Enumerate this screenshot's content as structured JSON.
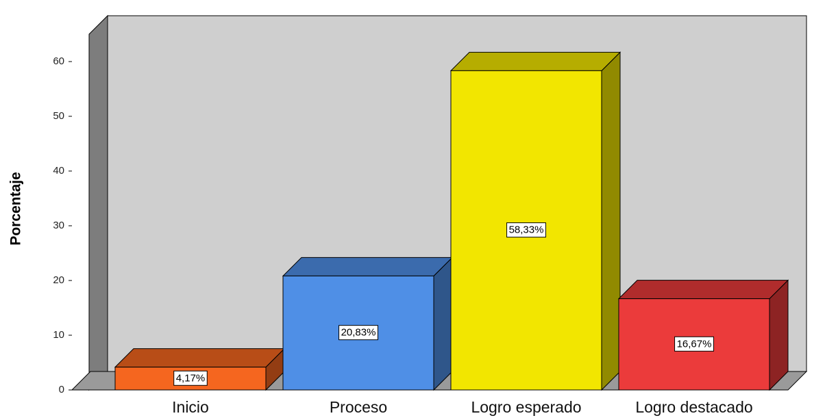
{
  "chart_data": {
    "type": "bar3d",
    "y_label": "Porcentaje",
    "categories": [
      "Inicio",
      "Proceso",
      "Logro esperado",
      "Logro destacado"
    ],
    "values": [
      4.17,
      20.83,
      58.33,
      16.67
    ],
    "value_labels": [
      "4,17%",
      "20,83%",
      "58,33%",
      "16,67%"
    ],
    "colors": [
      "#f5661f",
      "#4f8fe6",
      "#f2e600",
      "#eb3b3b"
    ],
    "ylim": [
      0,
      65
    ],
    "yticks": [
      0,
      10,
      20,
      30,
      40,
      50,
      60
    ]
  }
}
